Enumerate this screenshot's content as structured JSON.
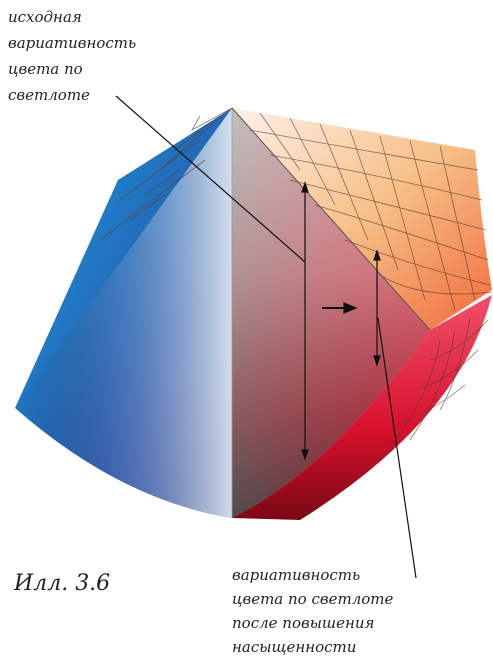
{
  "figure": {
    "top_label": [
      "исходная",
      "вариативность",
      "цвета по",
      "светлоте"
    ],
    "bottom_label": [
      "вариативность",
      "цвета по светлоте",
      "после повышения",
      "насыщенности"
    ],
    "caption": "Илл. 3.6"
  }
}
